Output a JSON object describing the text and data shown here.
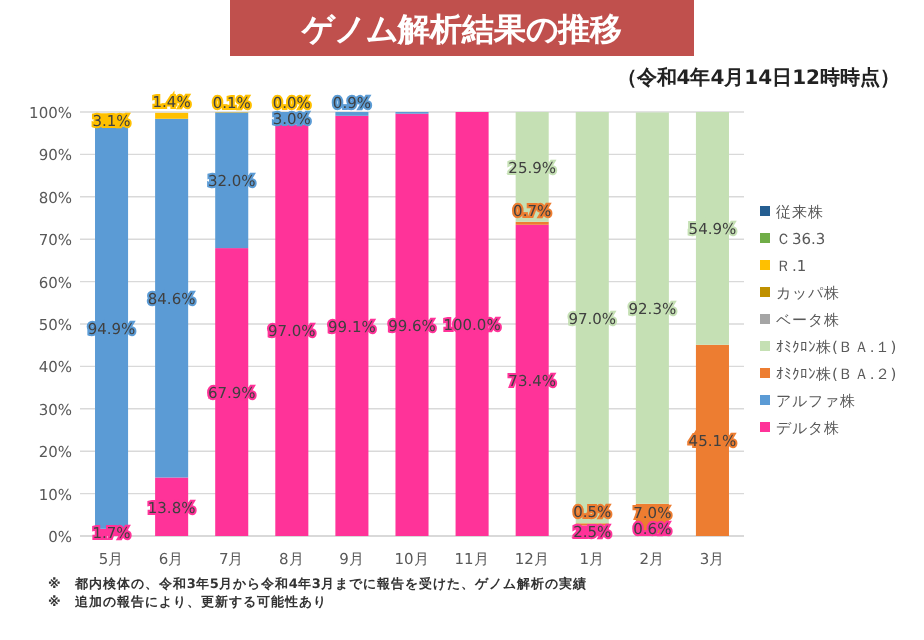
{
  "chart_data": {
    "type": "bar",
    "stacked": true,
    "title": "ゲノム解析結果の推移",
    "subtitle": "（令和4年4月14日12時時点）",
    "annotations": [
      "※　都内検体の、令和3年5月から令和4年3月までに報告を受けた、ゲノム解析の実績",
      "※　追加の報告により、更新する可能性あり"
    ],
    "categories": [
      "5月",
      "6月",
      "7月",
      "8月",
      "9月",
      "10月",
      "11月",
      "12月",
      "1月",
      "2月",
      "3月"
    ],
    "ylim": [
      0,
      100
    ],
    "yticks": [
      {
        "value": 0,
        "label": "0%"
      },
      {
        "value": 10,
        "label": "10%"
      },
      {
        "value": 20,
        "label": "20%"
      },
      {
        "value": 30,
        "label": "30%"
      },
      {
        "value": 40,
        "label": "40%"
      },
      {
        "value": 50,
        "label": "50%"
      },
      {
        "value": 60,
        "label": "60%"
      },
      {
        "value": 70,
        "label": "70%"
      },
      {
        "value": 80,
        "label": "80%"
      },
      {
        "value": 90,
        "label": "90%"
      },
      {
        "value": 100,
        "label": "100%"
      }
    ],
    "grid": "y",
    "legend": "right",
    "series": [
      {
        "name": "デルタ株",
        "color": "#ff3399",
        "values": [
          1.7,
          13.8,
          67.9,
          97.0,
          99.1,
          99.6,
          100.0,
          73.4,
          2.5,
          0.6,
          null
        ],
        "value_labels": [
          "1.7%",
          "13.8%",
          "67.9%",
          "97.0%",
          "99.1%",
          "99.6%",
          "100.0%",
          "73.4%",
          "2.5%",
          "0.6%",
          null
        ]
      },
      {
        "name": "アルファ株",
        "color": "#5b9bd5",
        "values": [
          94.9,
          84.6,
          32.0,
          3.0,
          0.9,
          0.4,
          null,
          null,
          null,
          null,
          null
        ],
        "value_labels": [
          "94.9%",
          "84.6%",
          "32.0%",
          "3.0%",
          "0.9%",
          null,
          null,
          null,
          null,
          null,
          null
        ]
      },
      {
        "name": "ｵﾐｸﾛﾝ株(ＢＡ.２)",
        "color": "#ed7d31",
        "values": [
          null,
          null,
          null,
          null,
          null,
          null,
          null,
          0.7,
          0.5,
          7.0,
          45.1
        ],
        "value_labels": [
          null,
          null,
          null,
          null,
          null,
          null,
          null,
          "0.7%",
          "0.5%",
          "7.0%",
          "45.1%"
        ]
      },
      {
        "name": "ｵﾐｸﾛﾝ株(ＢＡ.１)",
        "color": "#c5e0b4",
        "values": [
          null,
          null,
          null,
          null,
          null,
          null,
          null,
          25.9,
          97.0,
          92.3,
          54.9
        ],
        "value_labels": [
          null,
          null,
          null,
          null,
          null,
          null,
          null,
          "25.9%",
          "97.0%",
          "92.3%",
          "54.9%"
        ]
      },
      {
        "name": "ベータ株",
        "color": "#a5a5a5",
        "values": [
          null,
          null,
          null,
          null,
          null,
          null,
          null,
          null,
          null,
          null,
          null
        ]
      },
      {
        "name": "カッパ株",
        "color": "#bf9000",
        "values": [
          null,
          null,
          null,
          null,
          null,
          null,
          null,
          null,
          null,
          null,
          null
        ]
      },
      {
        "name": "Ｒ.1",
        "color": "#ffc000",
        "values": [
          3.1,
          1.4,
          0.1,
          0.0,
          null,
          null,
          null,
          null,
          null,
          null,
          null
        ],
        "value_labels": [
          "3.1%",
          "1.4%",
          "0.1%",
          "0.0%",
          null,
          null,
          null,
          null,
          null,
          null,
          null
        ]
      },
      {
        "name": "Ｃ36.3",
        "color": "#70ad47",
        "values": [
          null,
          null,
          null,
          null,
          null,
          null,
          null,
          null,
          null,
          null,
          null
        ]
      },
      {
        "name": "従来株",
        "color": "#255e91",
        "values": [
          null,
          null,
          null,
          null,
          null,
          null,
          null,
          null,
          null,
          null,
          null
        ]
      }
    ]
  }
}
